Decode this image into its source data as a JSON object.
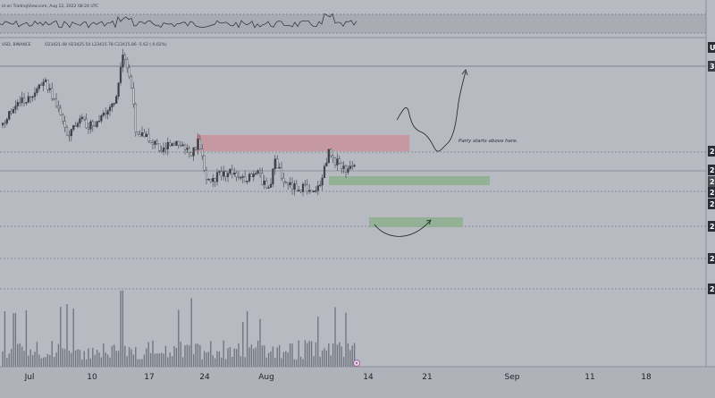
{
  "header": {
    "published_line": "id on TradingView.com, Aug 12, 2022 08:24 UTC",
    "symbol_line": "USD, BINANCE",
    "ohlc_line": "O23421.48  H23425.54  L23415.78  C23415.86  -5.62 (-0.02%)"
  },
  "annotations": {
    "party_note": "Party starts above here."
  },
  "colors": {
    "background": "#b8bac2",
    "candle": "#3c3f48",
    "supply_zone": "#c8929c",
    "demand_zone": "#8fb08f",
    "volume": "#5a5d66",
    "dashed_line": "#5a5d66"
  },
  "price_labels": [
    "U",
    "3",
    "2",
    "2",
    "2",
    "2",
    "2",
    "2",
    "2",
    "2"
  ],
  "chart_data": {
    "type": "candlestick",
    "x_axis": {
      "tick_labels": [
        "Jul",
        "10",
        "17",
        "24",
        "Aug",
        "14",
        "21",
        "Sep",
        "11",
        "18"
      ],
      "range": [
        "2022-06-27",
        "2022-09-23"
      ],
      "last_candle": "2022-08-12"
    },
    "indicator_panel": {
      "type": "oscillator",
      "position": "top"
    },
    "volume_panel": {
      "position": "bottom"
    },
    "zones": [
      {
        "type": "supply",
        "from": "2022-07-21",
        "to": "2022-08-19",
        "level": "upper"
      },
      {
        "type": "demand",
        "from": "2022-08-09",
        "to": "2022-08-30",
        "level": "middle"
      },
      {
        "type": "demand",
        "from": "2022-08-13",
        "to": "2022-08-25",
        "level": "lower"
      }
    ],
    "grid": false
  }
}
